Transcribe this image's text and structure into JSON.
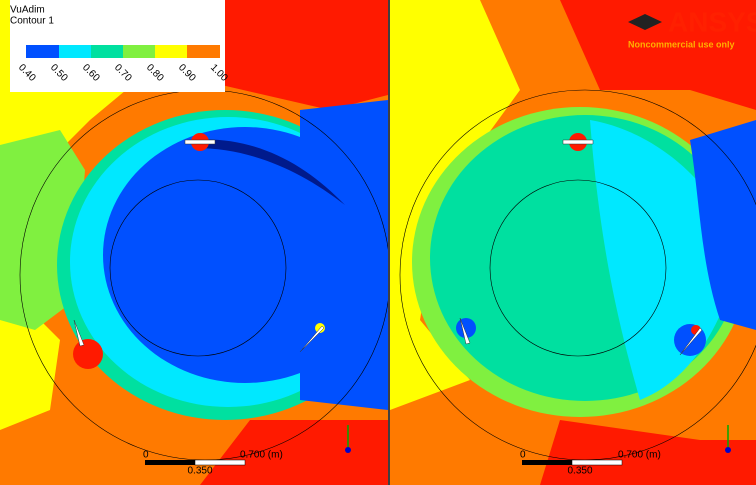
{
  "left_panel": {
    "legend": {
      "title": "VuAdim",
      "subtitle": "Contour 1",
      "labels": [
        "0.40",
        "0.50",
        "0.60",
        "0.70",
        "0.80",
        "0.90",
        "1.00"
      ]
    },
    "scale_bar": {
      "start": "0",
      "end": "0.700 (m)",
      "mid": "0.350"
    }
  },
  "right_panel": {
    "logo": {
      "brand": "ANSYS",
      "notice": "Noncommercial use only"
    },
    "scale_bar": {
      "start": "0",
      "end": "0.700 (m)",
      "mid": "0.350"
    }
  }
}
